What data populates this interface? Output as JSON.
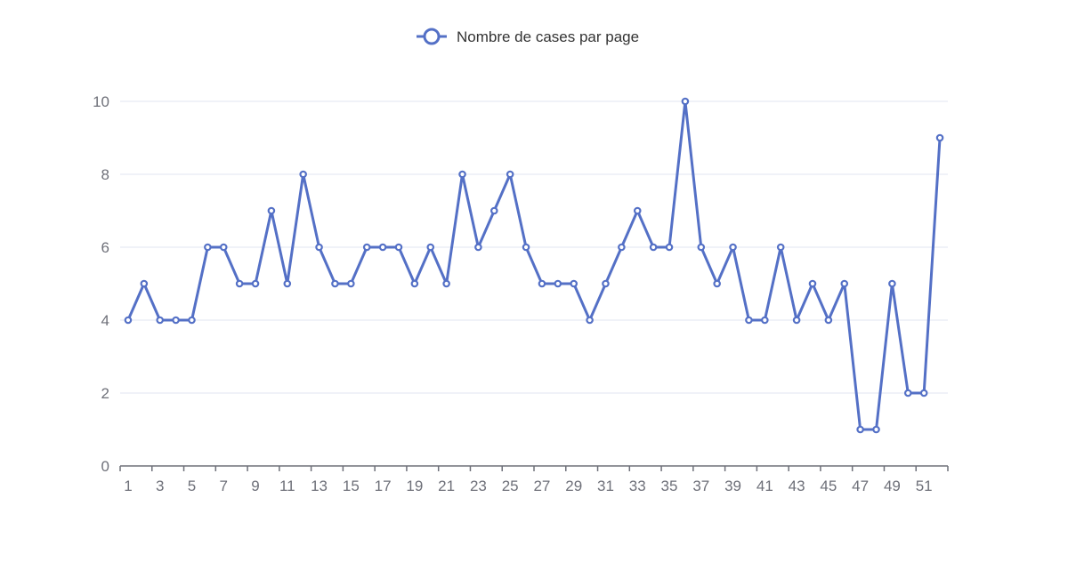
{
  "chart_data": {
    "type": "line",
    "x": [
      1,
      2,
      3,
      4,
      5,
      6,
      7,
      8,
      9,
      10,
      11,
      12,
      13,
      14,
      15,
      16,
      17,
      18,
      19,
      20,
      21,
      22,
      23,
      24,
      25,
      26,
      27,
      28,
      29,
      30,
      31,
      32,
      33,
      34,
      35,
      36,
      37,
      38,
      39,
      40,
      41,
      42,
      43,
      44,
      45,
      46,
      47,
      48,
      49,
      50,
      51,
      52
    ],
    "x_tick_labels": [
      "1",
      "3",
      "5",
      "7",
      "9",
      "11",
      "13",
      "15",
      "17",
      "19",
      "21",
      "23",
      "25",
      "27",
      "29",
      "31",
      "33",
      "35",
      "37",
      "39",
      "41",
      "43",
      "45",
      "47",
      "49",
      "51"
    ],
    "series": [
      {
        "name": "Nombre de cases par page",
        "values": [
          4,
          5,
          4,
          4,
          4,
          6,
          6,
          5,
          5,
          7,
          5,
          8,
          6,
          5,
          5,
          6,
          6,
          6,
          5,
          6,
          5,
          8,
          6,
          7,
          8,
          6,
          5,
          5,
          5,
          4,
          5,
          6,
          7,
          6,
          6,
          10,
          6,
          5,
          6,
          4,
          4,
          6,
          4,
          5,
          4,
          5,
          1,
          1,
          5,
          2,
          2,
          9
        ]
      }
    ],
    "y_ticks": [
      0,
      2,
      4,
      6,
      8,
      10
    ],
    "ylim": [
      0,
      10
    ],
    "title": "",
    "xlabel": "",
    "ylabel": "",
    "grid": true,
    "legend_position": "top-center",
    "colors": {
      "series": "#5470c6",
      "grid": "#e0e6f1",
      "axis": "#6e7079",
      "label": "#6e7079",
      "legend_text": "#333333"
    }
  }
}
